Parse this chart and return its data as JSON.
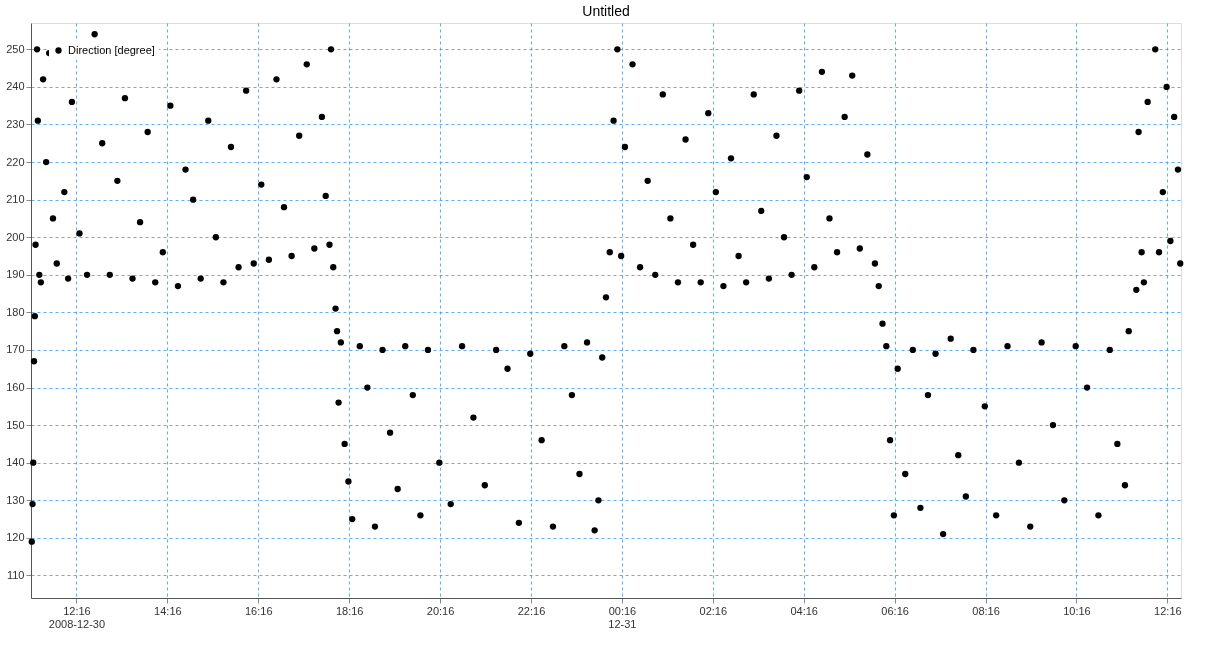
{
  "chart_data": {
    "type": "scatter",
    "title": "Untitled",
    "grid": true,
    "legend": "top left",
    "marker": "circle",
    "xlim": [
      "2008-12-30T11:16",
      "2008-12-31T12:34"
    ],
    "xticks": [
      {
        "value": "2008-12-30T12:16",
        "label": "12:16\n2008-12-30"
      },
      {
        "value": "2008-12-30T14:16",
        "label": "14:16"
      },
      {
        "value": "2008-12-30T16:16",
        "label": "16:16"
      },
      {
        "value": "2008-12-30T18:16",
        "label": "18:16"
      },
      {
        "value": "2008-12-30T20:16",
        "label": "20:16"
      },
      {
        "value": "2008-12-30T22:16",
        "label": "22:16"
      },
      {
        "value": "2008-12-31T00:16",
        "label": "00:16\n12-31"
      },
      {
        "value": "2008-12-31T02:16",
        "label": "02:16"
      },
      {
        "value": "2008-12-31T04:16",
        "label": "04:16"
      },
      {
        "value": "2008-12-31T06:16",
        "label": "06:16"
      },
      {
        "value": "2008-12-31T08:16",
        "label": "08:16"
      },
      {
        "value": "2008-12-31T10:16",
        "label": "10:16"
      },
      {
        "value": "2008-12-31T12:16",
        "label": "12:16"
      }
    ],
    "ylim": [
      104,
      257
    ],
    "yticks": [
      110,
      120,
      130,
      140,
      150,
      160,
      170,
      180,
      190,
      200,
      210,
      220,
      230,
      240,
      250
    ],
    "series": [
      {
        "name": "Direction [degree]",
        "color": "#000000",
        "x": [
          "2008-12-30T11:17",
          "2008-12-30T11:18",
          "2008-12-30T11:19",
          "2008-12-30T11:20",
          "2008-12-30T11:21",
          "2008-12-30T11:22",
          "2008-12-30T11:24",
          "2008-12-30T11:25",
          "2008-12-30T11:27",
          "2008-12-30T11:29",
          "2008-12-30T11:32",
          "2008-12-30T11:36",
          "2008-12-30T11:40",
          "2008-12-30T11:45",
          "2008-12-30T11:50",
          "2008-12-30T12:00",
          "2008-12-30T12:05",
          "2008-12-30T12:10",
          "2008-12-30T12:20",
          "2008-12-30T12:30",
          "2008-12-30T12:40",
          "2008-12-30T12:50",
          "2008-12-30T13:00",
          "2008-12-30T13:10",
          "2008-12-30T13:20",
          "2008-12-30T13:30",
          "2008-12-30T13:40",
          "2008-12-30T13:50",
          "2008-12-30T14:00",
          "2008-12-30T14:10",
          "2008-12-30T14:20",
          "2008-12-30T14:30",
          "2008-12-30T14:40",
          "2008-12-30T14:50",
          "2008-12-30T15:00",
          "2008-12-30T15:10",
          "2008-12-30T15:20",
          "2008-12-30T15:30",
          "2008-12-30T15:40",
          "2008-12-30T15:50",
          "2008-12-30T16:00",
          "2008-12-30T16:10",
          "2008-12-30T16:20",
          "2008-12-30T16:30",
          "2008-12-30T16:40",
          "2008-12-30T16:50",
          "2008-12-30T17:00",
          "2008-12-30T17:10",
          "2008-12-30T17:20",
          "2008-12-30T17:30",
          "2008-12-30T17:40",
          "2008-12-30T17:45",
          "2008-12-30T17:50",
          "2008-12-30T17:52",
          "2008-12-30T17:55",
          "2008-12-30T17:58",
          "2008-12-30T18:00",
          "2008-12-30T18:02",
          "2008-12-30T18:05",
          "2008-12-30T18:10",
          "2008-12-30T18:15",
          "2008-12-30T18:20",
          "2008-12-30T18:30",
          "2008-12-30T18:40",
          "2008-12-30T18:50",
          "2008-12-30T19:00",
          "2008-12-30T19:10",
          "2008-12-30T19:20",
          "2008-12-30T19:30",
          "2008-12-30T19:40",
          "2008-12-30T19:50",
          "2008-12-30T20:00",
          "2008-12-30T20:15",
          "2008-12-30T20:30",
          "2008-12-30T20:45",
          "2008-12-30T21:00",
          "2008-12-30T21:15",
          "2008-12-30T21:30",
          "2008-12-30T21:45",
          "2008-12-30T22:00",
          "2008-12-30T22:15",
          "2008-12-30T22:30",
          "2008-12-30T22:45",
          "2008-12-30T23:00",
          "2008-12-30T23:10",
          "2008-12-30T23:20",
          "2008-12-30T23:30",
          "2008-12-30T23:40",
          "2008-12-30T23:45",
          "2008-12-30T23:50",
          "2008-12-30T23:55",
          "2008-12-31T00:00",
          "2008-12-31T00:05",
          "2008-12-31T00:10",
          "2008-12-31T00:15",
          "2008-12-31T00:20",
          "2008-12-31T00:30",
          "2008-12-31T00:40",
          "2008-12-31T00:50",
          "2008-12-31T01:00",
          "2008-12-31T01:10",
          "2008-12-31T01:20",
          "2008-12-31T01:30",
          "2008-12-31T01:40",
          "2008-12-31T01:50",
          "2008-12-31T02:00",
          "2008-12-31T02:10",
          "2008-12-31T02:20",
          "2008-12-31T02:30",
          "2008-12-31T02:40",
          "2008-12-31T02:50",
          "2008-12-31T03:00",
          "2008-12-31T03:10",
          "2008-12-31T03:20",
          "2008-12-31T03:30",
          "2008-12-31T03:40",
          "2008-12-31T03:50",
          "2008-12-31T04:00",
          "2008-12-31T04:10",
          "2008-12-31T04:20",
          "2008-12-31T04:30",
          "2008-12-31T04:40",
          "2008-12-31T04:50",
          "2008-12-31T05:00",
          "2008-12-31T05:10",
          "2008-12-31T05:20",
          "2008-12-31T05:30",
          "2008-12-31T05:40",
          "2008-12-31T05:50",
          "2008-12-31T05:55",
          "2008-12-31T06:00",
          "2008-12-31T06:05",
          "2008-12-31T06:10",
          "2008-12-31T06:15",
          "2008-12-31T06:20",
          "2008-12-31T06:30",
          "2008-12-31T06:40",
          "2008-12-31T06:50",
          "2008-12-31T07:00",
          "2008-12-31T07:10",
          "2008-12-31T07:20",
          "2008-12-31T07:30",
          "2008-12-31T07:40",
          "2008-12-31T07:50",
          "2008-12-31T08:00",
          "2008-12-31T08:15",
          "2008-12-31T08:30",
          "2008-12-31T08:45",
          "2008-12-31T09:00",
          "2008-12-31T09:15",
          "2008-12-31T09:30",
          "2008-12-31T09:45",
          "2008-12-31T10:00",
          "2008-12-31T10:15",
          "2008-12-31T10:30",
          "2008-12-31T10:45",
          "2008-12-31T11:00",
          "2008-12-31T11:10",
          "2008-12-31T11:20",
          "2008-12-31T11:25",
          "2008-12-31T11:35",
          "2008-12-31T11:38",
          "2008-12-31T11:42",
          "2008-12-31T11:45",
          "2008-12-31T11:50",
          "2008-12-31T12:00",
          "2008-12-31T12:05",
          "2008-12-31T12:10",
          "2008-12-31T12:15",
          "2008-12-31T12:20",
          "2008-12-31T12:25",
          "2008-12-31T12:30",
          "2008-12-31T12:33"
        ],
        "values": [
          119,
          129,
          140,
          167,
          179,
          198,
          250,
          231,
          190,
          188,
          242,
          220,
          249,
          205,
          193,
          212,
          189,
          236,
          201,
          190,
          254,
          225,
          190,
          215,
          237,
          189,
          204,
          228,
          188,
          196,
          235,
          187,
          218,
          210,
          189,
          231,
          200,
          188,
          224,
          192,
          239,
          193,
          214,
          194,
          242,
          208,
          195,
          227,
          246,
          197,
          232,
          211,
          198,
          250,
          192,
          181,
          175,
          156,
          172,
          145,
          135,
          125,
          171,
          160,
          123,
          170,
          148,
          133,
          171,
          158,
          126,
          170,
          140,
          129,
          171,
          152,
          134,
          170,
          165,
          124,
          169,
          146,
          123,
          171,
          158,
          137,
          172,
          122,
          130,
          168,
          184,
          196,
          231,
          250,
          195,
          224,
          246,
          192,
          215,
          190,
          238,
          205,
          188,
          226,
          198,
          188,
          233,
          212,
          187,
          221,
          195,
          188,
          238,
          207,
          189,
          227,
          200,
          190,
          239,
          216,
          192,
          244,
          205,
          196,
          232,
          243,
          197,
          222,
          193,
          187,
          177,
          171,
          146,
          126,
          165,
          137,
          170,
          128,
          158,
          169,
          121,
          173,
          142,
          131,
          170,
          155,
          126,
          171,
          140,
          123,
          172,
          150,
          130,
          171,
          160,
          126,
          170,
          145,
          134,
          175,
          186,
          228,
          196,
          188,
          236,
          250,
          196,
          212,
          240,
          199,
          232,
          218,
          193
        ]
      }
    ]
  }
}
